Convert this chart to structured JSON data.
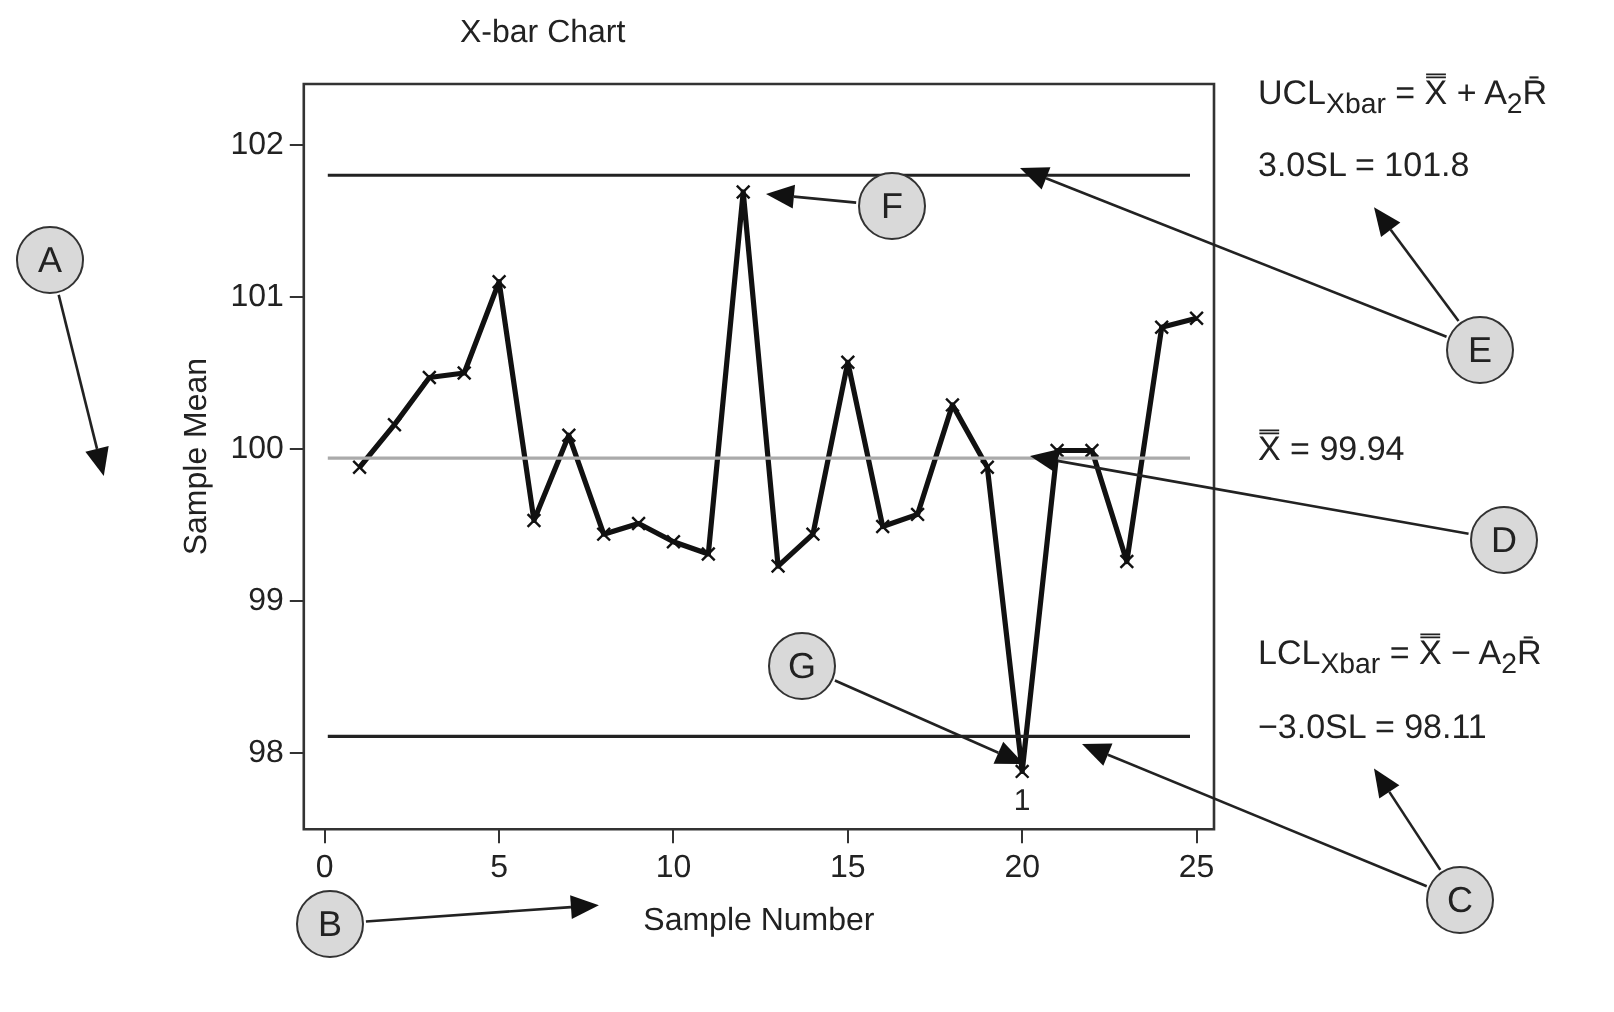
{
  "chart_data": {
    "type": "line",
    "title": "X-bar Chart",
    "xlabel": "Sample Number",
    "ylabel": "Sample Mean",
    "x": [
      1,
      2,
      3,
      4,
      5,
      6,
      7,
      8,
      9,
      10,
      11,
      12,
      13,
      14,
      15,
      16,
      17,
      18,
      19,
      20,
      21,
      22,
      23,
      24,
      25
    ],
    "series": [
      {
        "color": "#111111",
        "values": [
          99.88,
          100.16,
          100.47,
          100.5,
          101.1,
          99.53,
          100.09,
          99.44,
          99.51,
          99.39,
          99.31,
          101.69,
          99.23,
          99.44,
          100.57,
          99.49,
          99.57,
          100.29,
          99.88,
          97.88,
          99.99,
          99.99,
          99.26,
          100.8,
          100.86
        ]
      }
    ],
    "marker": "cross",
    "grid": false,
    "legend": false,
    "xlim": [
      -0.6,
      25.5
    ],
    "ylim": [
      97.5,
      102.4
    ],
    "xticks": [
      0,
      5,
      10,
      15,
      20,
      25
    ],
    "yticks": [
      98,
      99,
      100,
      101,
      102
    ],
    "ref_lines": [
      {
        "axis": "y",
        "value": 101.8,
        "label": "UCL$_{Xbar}$ = X̿ + A$_{2}$R̄\n3.0SL = 101.8",
        "color": "#222222"
      },
      {
        "axis": "y",
        "value": 99.94,
        "label": "X̿ = 99.94",
        "color": "#aaaaaa"
      },
      {
        "axis": "y",
        "value": 98.11,
        "label": "LCL$_{Xbar}$ = X̿ − A$_{2}$R̄\n−3.0SL = 98.11",
        "color": "#222222"
      }
    ],
    "annotations": [
      {
        "text": "1",
        "x": 20,
        "y": 97.88
      },
      "A",
      "B",
      "C",
      "D",
      "E",
      "F",
      "G"
    ]
  }
}
